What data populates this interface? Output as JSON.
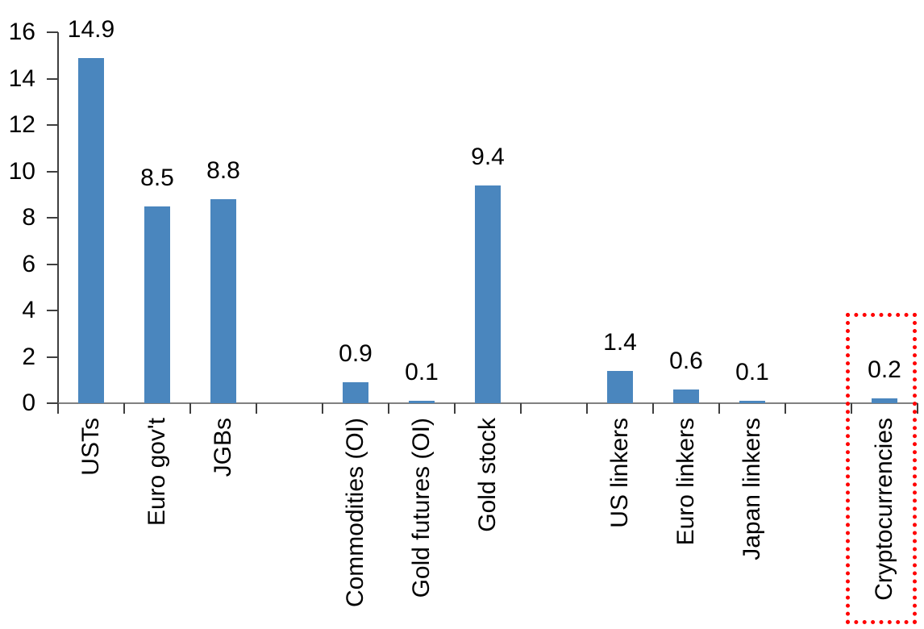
{
  "chart_data": {
    "type": "bar",
    "title": "",
    "xlabel": "",
    "ylabel": "",
    "categories": [
      "USTs",
      "Euro gov't",
      "JGBs",
      "",
      "Commodities (OI)",
      "Gold futures (OI)",
      "Gold stock",
      "",
      "US linkers",
      "Euro linkers",
      "Japan linkers",
      "",
      "Cryptocurrencies"
    ],
    "values": [
      14.9,
      8.5,
      8.8,
      null,
      0.9,
      0.1,
      9.4,
      null,
      1.4,
      0.6,
      0.1,
      null,
      0.2
    ],
    "data_labels": [
      "14.9",
      "8.5",
      "8.8",
      "",
      "0.9",
      "0.1",
      "9.4",
      "",
      "1.4",
      "0.6",
      "0.1",
      "",
      "0.2"
    ],
    "ylim": [
      0,
      16
    ],
    "y_ticks": [
      0,
      2,
      4,
      6,
      8,
      10,
      12,
      14,
      16
    ],
    "grid": false,
    "legend": false,
    "bar_color": "#4A86BE",
    "axis_color": "#3F3F3F",
    "baseline_color": "#808080",
    "text_color": "#000000",
    "annotation": {
      "type": "dotted-outline-box",
      "color": "#FF0000",
      "highlighted_category": "Cryptocurrencies",
      "highlighted_value_label": "0.2"
    }
  }
}
